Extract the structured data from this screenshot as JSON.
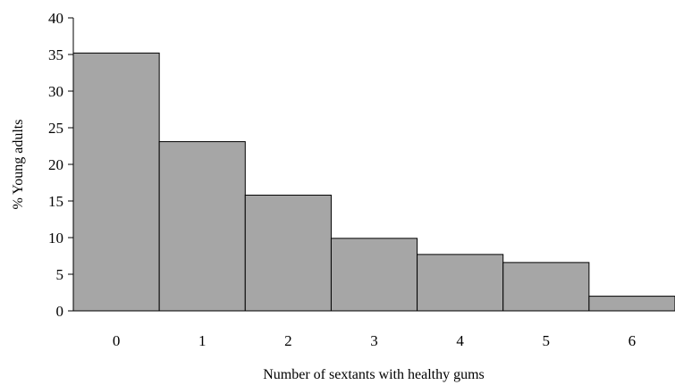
{
  "chart_data": {
    "type": "bar",
    "title": "",
    "xlabel": "Number of sextants with healthy gums",
    "ylabel": "% Young adults",
    "categories": [
      "0",
      "1",
      "2",
      "3",
      "4",
      "5",
      "6"
    ],
    "values": [
      35.2,
      23.1,
      15.8,
      9.9,
      7.7,
      6.6,
      2.0
    ],
    "ylim": [
      0,
      40
    ],
    "yticks": [
      "0",
      "5",
      "10",
      "15",
      "20",
      "25",
      "30",
      "35",
      "40"
    ],
    "grid": false,
    "legend": "none",
    "bar_color": "#a6a6a6",
    "bar_edge_color": "#000000"
  }
}
